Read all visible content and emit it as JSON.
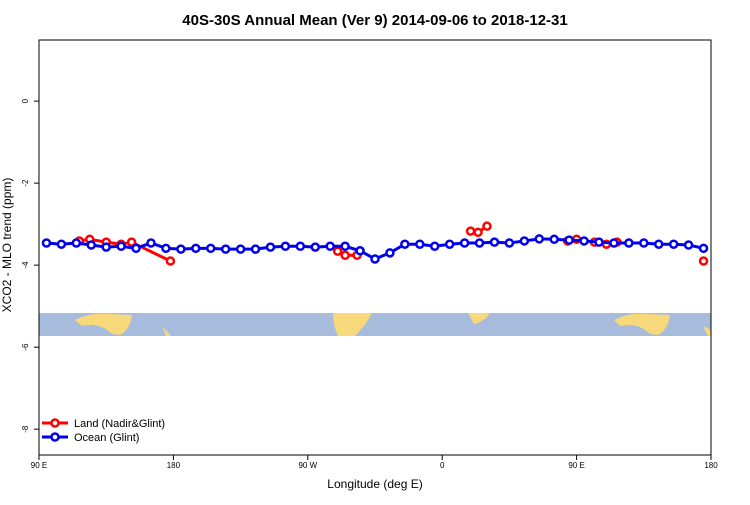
{
  "chart_data": {
    "type": "line",
    "title": "40S-30S Annual Mean (Ver 9)   2014-09-06 to 2018-12-31",
    "x_label": "Longitude (deg E)",
    "y_label": "XCO2 - MLO trend (ppm)",
    "xlim": [
      90,
      540
    ],
    "ylim": [
      -8.63,
      1.49
    ],
    "xticks": [
      {
        "value": 90,
        "label": "90 E"
      },
      180,
      {
        "value": 270,
        "label": "90 W"
      },
      {
        "value": 360,
        "label": "0"
      },
      {
        "value": 450,
        "label": "90 E"
      },
      {
        "value": 540,
        "label": "180"
      }
    ],
    "yticks": [
      0,
      -2,
      -4,
      -6,
      -8
    ],
    "legend": "bottom-left",
    "series": [
      {
        "name": "Land (Nadir&Glint)",
        "color": "#ff0000",
        "x": [
          117,
          124,
          135,
          145,
          152,
          178,
          null,
          290,
          295,
          303,
          null,
          379,
          384,
          390,
          null,
          444,
          450,
          462,
          470,
          477,
          null,
          535
        ],
        "values": [
          -3.41,
          -3.37,
          -3.44,
          -3.49,
          -3.44,
          -3.9,
          null,
          -3.66,
          -3.76,
          -3.76,
          null,
          -3.17,
          -3.2,
          -3.05,
          null,
          -3.41,
          -3.37,
          -3.44,
          -3.49,
          -3.44,
          null,
          -3.9
        ]
      },
      {
        "name": "Ocean (Glint)",
        "color": "#0000ee",
        "x": [
          95,
          105,
          115,
          125,
          135,
          145,
          155,
          165,
          175,
          185,
          195,
          205,
          215,
          225,
          235,
          245,
          255,
          265,
          275,
          285,
          295,
          305,
          315,
          325,
          335,
          345,
          355,
          365,
          375,
          385,
          395,
          405,
          415,
          425,
          435,
          445,
          455,
          465,
          475,
          485,
          495,
          505,
          515,
          525,
          535
        ],
        "values": [
          -3.46,
          -3.49,
          -3.46,
          -3.51,
          -3.56,
          -3.54,
          -3.59,
          -3.46,
          -3.59,
          -3.61,
          -3.59,
          -3.59,
          -3.61,
          -3.61,
          -3.61,
          -3.56,
          -3.54,
          -3.54,
          -3.56,
          -3.54,
          -3.54,
          -3.65,
          -3.85,
          -3.7,
          -3.49,
          -3.49,
          -3.54,
          -3.49,
          -3.46,
          -3.46,
          -3.44,
          -3.46,
          -3.41,
          -3.36,
          -3.37,
          -3.39,
          -3.41,
          -3.44,
          -3.46,
          -3.46,
          -3.46,
          -3.49,
          -3.49,
          -3.51,
          -3.59
        ]
      }
    ]
  }
}
